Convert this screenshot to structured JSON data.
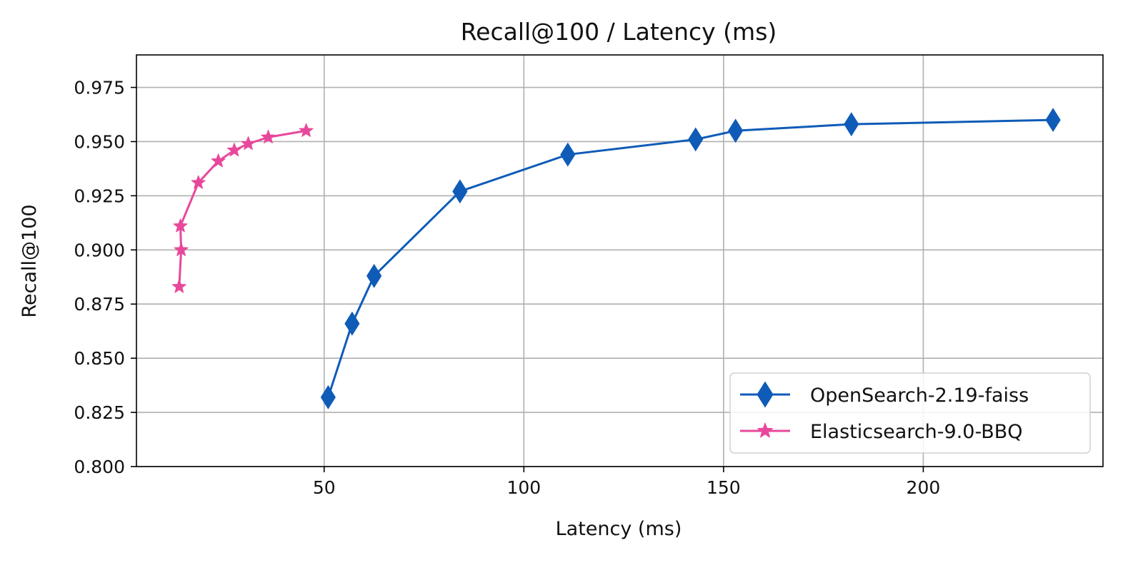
{
  "chart_data": {
    "type": "line",
    "title": "Recall@100 / Latency (ms)",
    "xlabel": "Latency (ms)",
    "ylabel": "Recall@100",
    "xlim": [
      3,
      245
    ],
    "ylim": [
      0.8,
      0.99
    ],
    "x_ticks": [
      50,
      100,
      150,
      200
    ],
    "x_tick_labels": [
      "50",
      "100",
      "150",
      "200"
    ],
    "y_ticks": [
      0.8,
      0.825,
      0.85,
      0.875,
      0.9,
      0.925,
      0.95,
      0.975
    ],
    "y_tick_labels": [
      "0.800",
      "0.825",
      "0.850",
      "0.875",
      "0.900",
      "0.925",
      "0.950",
      "0.975"
    ],
    "grid": true,
    "legend_position": "bottom-right",
    "series": [
      {
        "name": "OpenSearch-2.19-faiss",
        "color": "#0f5bb8",
        "marker": "diamond",
        "points": [
          {
            "x": 51,
            "y": 0.832
          },
          {
            "x": 57,
            "y": 0.866
          },
          {
            "x": 62.5,
            "y": 0.888
          },
          {
            "x": 84,
            "y": 0.927
          },
          {
            "x": 111,
            "y": 0.944
          },
          {
            "x": 143,
            "y": 0.951
          },
          {
            "x": 153,
            "y": 0.955
          },
          {
            "x": 182,
            "y": 0.958
          },
          {
            "x": 232.5,
            "y": 0.96
          }
        ]
      },
      {
        "name": "Elasticsearch-9.0-BBQ",
        "color": "#e8489b",
        "marker": "star",
        "points": [
          {
            "x": 13.7,
            "y": 0.883
          },
          {
            "x": 14.2,
            "y": 0.9
          },
          {
            "x": 14.0,
            "y": 0.911
          },
          {
            "x": 18.5,
            "y": 0.931
          },
          {
            "x": 23.5,
            "y": 0.941
          },
          {
            "x": 27.5,
            "y": 0.946
          },
          {
            "x": 31,
            "y": 0.949
          },
          {
            "x": 36,
            "y": 0.952
          },
          {
            "x": 45.5,
            "y": 0.955
          }
        ]
      }
    ]
  }
}
